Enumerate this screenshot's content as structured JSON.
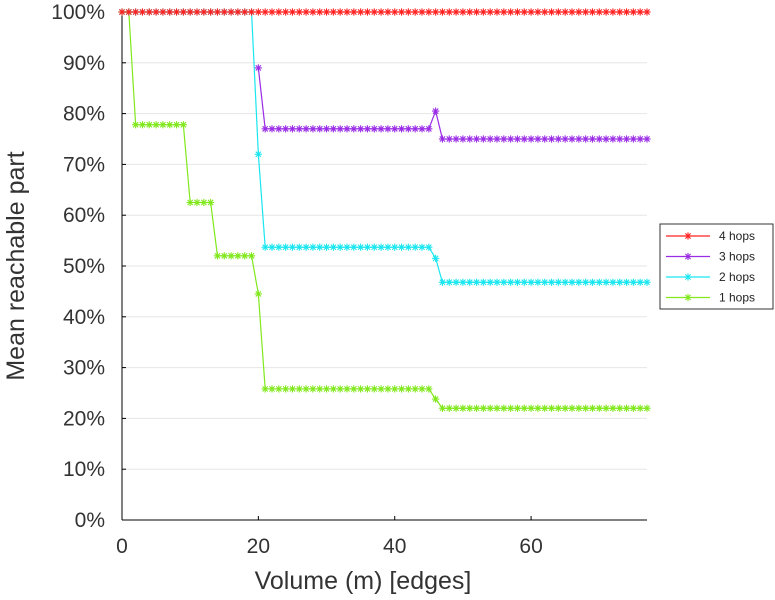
{
  "chart_data": {
    "type": "line",
    "title": "",
    "xlabel": "Volume (m) [edges]",
    "ylabel": "Mean reachable part",
    "xlim": [
      0,
      77
    ],
    "ylim": [
      0,
      100
    ],
    "xticks": [
      0,
      20,
      40,
      60
    ],
    "xtick_labels": [
      "0",
      "20",
      "40",
      "60"
    ],
    "yticks": [
      0,
      10,
      20,
      30,
      40,
      50,
      60,
      70,
      80,
      90,
      100
    ],
    "ytick_labels": [
      "0%",
      "10%",
      "20%",
      "30%",
      "40%",
      "50%",
      "60%",
      "70%",
      "80%",
      "90%",
      "100%"
    ],
    "grid": true,
    "legend_position": "right",
    "marker": "asterisk",
    "series": [
      {
        "name": "4 hops",
        "color": "#ff2020",
        "x_start": 0,
        "x_end": 77,
        "points": [
          [
            0,
            100
          ],
          [
            77,
            100
          ]
        ]
      },
      {
        "name": "3 hops",
        "color": "#9a2ce6",
        "x_start": 20,
        "x_end": 77,
        "points": [
          [
            20,
            89
          ],
          [
            21,
            77
          ],
          [
            45,
            77
          ],
          [
            46,
            80.5
          ],
          [
            47,
            75
          ],
          [
            77,
            75
          ]
        ]
      },
      {
        "name": "2 hops",
        "color": "#18e6f0",
        "x_start": 0,
        "x_end": 77,
        "points": [
          [
            0,
            100
          ],
          [
            19,
            100
          ],
          [
            20,
            72
          ],
          [
            21,
            53.7
          ],
          [
            45,
            53.7
          ],
          [
            46,
            51.5
          ],
          [
            47,
            46.8
          ],
          [
            77,
            46.8
          ]
        ]
      },
      {
        "name": "1 hops",
        "color": "#80e81c",
        "x_start": 0,
        "x_end": 77,
        "points": [
          [
            0,
            100
          ],
          [
            1,
            100
          ],
          [
            2,
            77.8
          ],
          [
            9,
            77.8
          ],
          [
            10,
            62.5
          ],
          [
            13,
            62.5
          ],
          [
            14,
            52
          ],
          [
            19,
            52
          ],
          [
            20,
            44.5
          ],
          [
            21,
            25.8
          ],
          [
            45,
            25.8
          ],
          [
            46,
            23.8
          ],
          [
            47,
            22
          ],
          [
            77,
            22
          ]
        ]
      }
    ]
  }
}
